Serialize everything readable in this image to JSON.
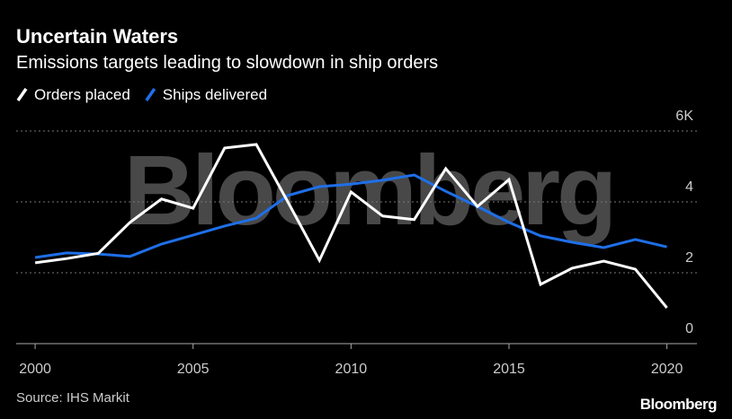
{
  "chart_data": {
    "type": "line",
    "title": "Uncertain Waters",
    "subtitle": "Emissions targets leading to slowdown in ship orders",
    "source": "Source: IHS Markit",
    "watermark": "Bloomberg",
    "logo": "Bloomberg",
    "x": [
      2000,
      2001,
      2002,
      2003,
      2004,
      2005,
      2006,
      2007,
      2008,
      2009,
      2010,
      2011,
      2012,
      2013,
      2014,
      2015,
      2016,
      2017,
      2018,
      2019,
      2020
    ],
    "series": [
      {
        "name": "Orders placed",
        "color": "#ffffff",
        "values": [
          2.28,
          2.4,
          2.55,
          3.42,
          4.08,
          3.82,
          5.52,
          5.62,
          4.0,
          2.35,
          4.28,
          3.6,
          3.5,
          4.94,
          3.87,
          4.63,
          1.67,
          2.13,
          2.33,
          2.1,
          1.01
        ]
      },
      {
        "name": "Ships delivered",
        "color": "#1f6fe8",
        "values": [
          2.43,
          2.56,
          2.53,
          2.46,
          2.81,
          3.06,
          3.32,
          3.54,
          4.18,
          4.43,
          4.5,
          4.61,
          4.76,
          4.3,
          3.87,
          3.42,
          3.04,
          2.86,
          2.71,
          2.94,
          2.73
        ]
      }
    ],
    "xlim": [
      1999.4,
      2020.95
    ],
    "xticks": [
      2000,
      2005,
      2010,
      2015,
      2020
    ],
    "ylim": [
      0,
      6
    ],
    "yticks": [
      0,
      2,
      4,
      {
        "value": 6,
        "label": "6K"
      }
    ],
    "grid": true
  }
}
